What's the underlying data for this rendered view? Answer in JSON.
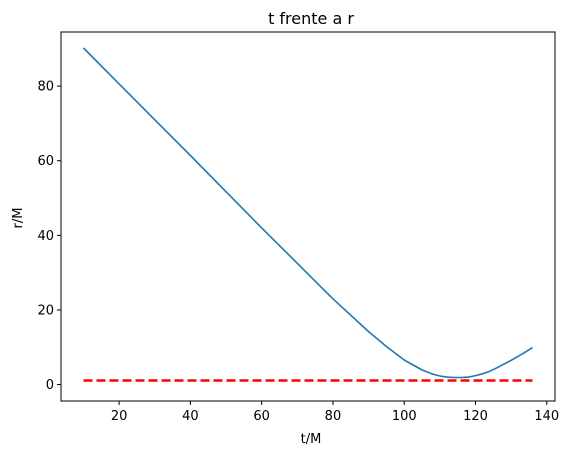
{
  "chart_data": {
    "type": "line",
    "title": "t frente a r",
    "xlabel": "t/M",
    "ylabel": "r/M",
    "xlim": [
      3.7,
      142.3
    ],
    "ylim": [
      -4.4,
      94.5
    ],
    "xticks": [
      20,
      40,
      60,
      80,
      100,
      120,
      140
    ],
    "yticks": [
      0,
      20,
      40,
      60,
      80
    ],
    "grid": false,
    "series": [
      {
        "color": "#1f77b4",
        "style": "solid",
        "x": [
          10,
          20,
          30,
          40,
          50,
          60,
          70,
          80,
          90,
          95,
          100,
          105,
          108,
          110,
          112,
          114,
          116,
          118,
          120,
          122,
          124,
          126,
          128,
          130,
          132,
          134,
          136
        ],
        "y": [
          90.2,
          80.6,
          71.0,
          61.4,
          51.7,
          42.0,
          32.5,
          23.0,
          14.2,
          10.2,
          6.6,
          3.9,
          2.8,
          2.3,
          2.0,
          1.9,
          1.9,
          2.0,
          2.4,
          2.9,
          3.6,
          4.5,
          5.5,
          6.5,
          7.6,
          8.7,
          9.9
        ]
      },
      {
        "color": "#ff0000",
        "style": "dashed",
        "x": [
          10,
          136
        ],
        "y": [
          1.1,
          1.1
        ]
      }
    ]
  }
}
